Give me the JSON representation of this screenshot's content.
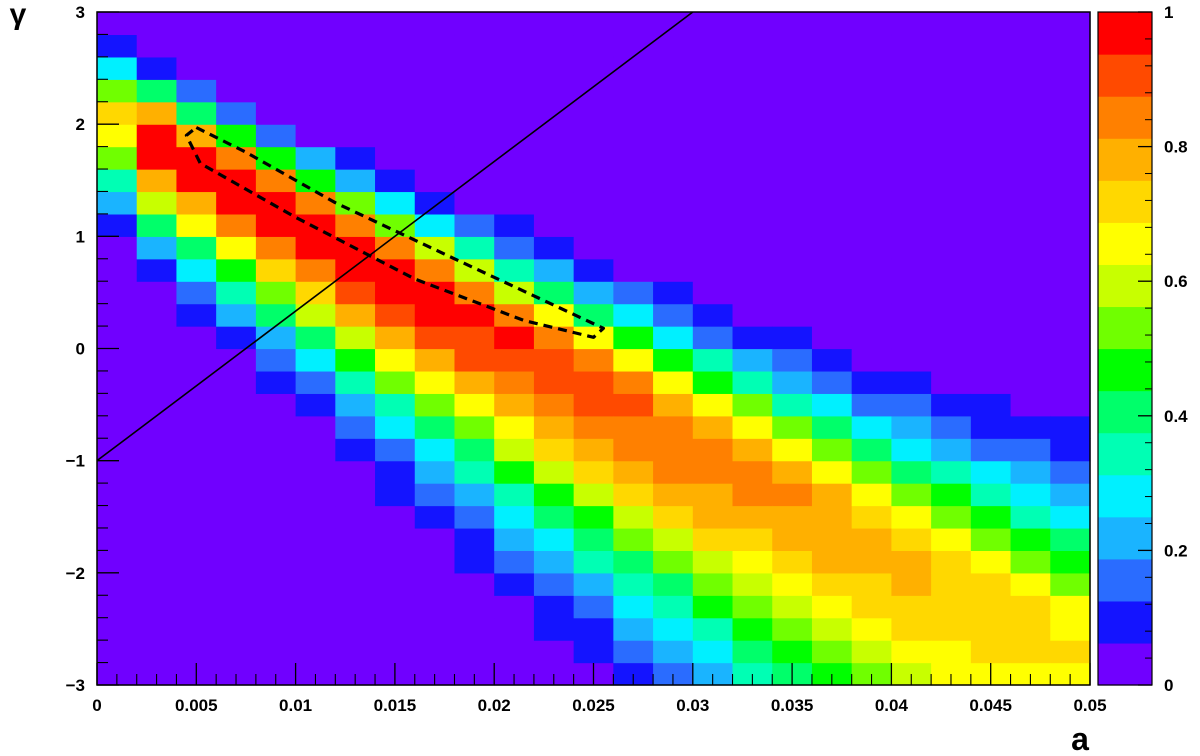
{
  "chart_data": {
    "type": "heatmap",
    "title": "",
    "xlabel": "a",
    "ylabel": "γ",
    "xlim": [
      0,
      0.05
    ],
    "ylim": [
      -3,
      3
    ],
    "zlim": [
      0,
      1
    ],
    "x_bin_width": 0.002,
    "y_bin_width": 0.2,
    "x_ticks": [
      0,
      0.005,
      0.01,
      0.015,
      0.02,
      0.025,
      0.03,
      0.035,
      0.04,
      0.045,
      0.05
    ],
    "x_tick_labels": [
      "0",
      "0.005",
      "0.01",
      "0.015",
      "0.02",
      "0.025",
      "0.03",
      "0.035",
      "0.04",
      "0.045",
      "0.05"
    ],
    "y_ticks": [
      -3,
      -2,
      -1,
      0,
      1,
      2,
      3
    ],
    "y_tick_labels": [
      "−3",
      "−2",
      "−1",
      "0",
      "1",
      "2",
      "3"
    ],
    "z_ticks": [
      0,
      0.2,
      0.4,
      0.6,
      0.8,
      1
    ],
    "z_tick_labels": [
      "0",
      "0.2",
      "0.4",
      "0.6",
      "0.8",
      "1"
    ],
    "colorbar_position": "right",
    "grid": false,
    "model": {
      "description_of_cells": "z-values per (a, gamma) bin approximated by a smooth ridge",
      "peak_gamma_at_zero_a": 2.2,
      "ridge_slope": -100,
      "near_ridge_width_low_a": 0.5,
      "near_ridge_width_growth": 24
    },
    "overlays": {
      "line": {
        "points": [
          [
            0,
            -1
          ],
          [
            0.03,
            3
          ]
        ],
        "style": "solid",
        "color": "#000000"
      },
      "contour": {
        "style": "dashed",
        "color": "#000000",
        "center": [
          0.0155,
          1.06
        ],
        "points": [
          [
            0.005,
            1.97
          ],
          [
            0.0075,
            1.75
          ],
          [
            0.012,
            1.3
          ],
          [
            0.018,
            0.8
          ],
          [
            0.0255,
            0.18
          ],
          [
            0.025,
            0.1
          ],
          [
            0.0215,
            0.25
          ],
          [
            0.016,
            0.62
          ],
          [
            0.01,
            1.17
          ],
          [
            0.0052,
            1.65
          ],
          [
            0.0045,
            1.9
          ]
        ]
      }
    },
    "palette": [
      "#7000ff",
      "#1414ff",
      "#2a6cff",
      "#1ab4ff",
      "#00f0ff",
      "#00ffb4",
      "#00ff6a",
      "#00ff00",
      "#70ff00",
      "#c8ff00",
      "#ffff00",
      "#ffd800",
      "#ffb000",
      "#ff8000",
      "#ff4a00",
      "#ff0000"
    ]
  }
}
